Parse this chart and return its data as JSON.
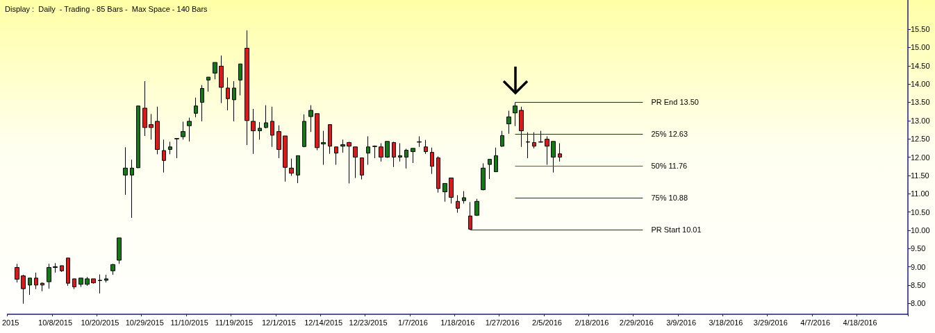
{
  "chart_data": {
    "type": "candlestick",
    "title": "Display :  Daily  - Trading - 85 Bars -  Max Space - 140 Bars",
    "categories": [
      "2015",
      null,
      null,
      null,
      null,
      null,
      null,
      "10/8/2015",
      null,
      null,
      null,
      null,
      null,
      null,
      "10/20/2015",
      null,
      null,
      null,
      null,
      null,
      null,
      "10/29/2015",
      null,
      null,
      null,
      null,
      null,
      null,
      "11/10/2015",
      null,
      null,
      null,
      null,
      null,
      null,
      "11/19/2015",
      null,
      null,
      null,
      null,
      null,
      null,
      "12/1/2015",
      null,
      null,
      null,
      null,
      null,
      null,
      "12/14/2015",
      null,
      null,
      null,
      null,
      null,
      null,
      "12/23/2015",
      null,
      null,
      null,
      null,
      null,
      null,
      "1/7/2016",
      null,
      null,
      null,
      null,
      null,
      null,
      "1/18/2016",
      null,
      null,
      null,
      null,
      null,
      null,
      "1/27/2016",
      null,
      null,
      null,
      null,
      null,
      null,
      "2/5/2016",
      null,
      null,
      null,
      null,
      null,
      null,
      "2/18/2016",
      null,
      null,
      null,
      null,
      null,
      null,
      "2/29/2016",
      null,
      null,
      null,
      null,
      null,
      null,
      "3/9/2016",
      null,
      null,
      null,
      null,
      null,
      null,
      "3/18/2016",
      null,
      null,
      null,
      null,
      null,
      null,
      "3/29/2016",
      null,
      null,
      null,
      null,
      null,
      null,
      "4/7/2016",
      null,
      null,
      null,
      null,
      null,
      null,
      "4/18/2016",
      null,
      null,
      null,
      null,
      null,
      null,
      null
    ],
    "ohlc": [
      null,
      [
        8.98,
        9.08,
        8.57,
        8.66
      ],
      [
        8.75,
        8.78,
        7.99,
        8.4
      ],
      [
        8.5,
        8.69,
        8.23,
        8.69
      ],
      [
        8.69,
        8.84,
        8.39,
        8.5
      ],
      [
        8.55,
        8.57,
        8.33,
        8.5
      ],
      [
        8.59,
        9.08,
        8.4,
        8.98
      ],
      [
        8.98,
        9.1,
        8.84,
        9.0
      ],
      [
        9.03,
        9.03,
        8.86,
        8.89
      ],
      [
        9.24,
        9.24,
        8.48,
        8.55
      ],
      [
        8.67,
        8.67,
        8.39,
        8.45
      ],
      [
        8.52,
        8.69,
        8.45,
        8.69
      ],
      [
        8.52,
        8.72,
        8.48,
        8.67
      ],
      [
        8.67,
        8.67,
        8.54,
        8.56
      ],
      [
        8.63,
        8.79,
        8.27,
        8.62
      ],
      [
        8.63,
        8.78,
        8.57,
        8.67
      ],
      [
        8.89,
        9.08,
        8.78,
        9.06
      ],
      [
        9.18,
        9.79,
        9.08,
        9.79
      ],
      [
        11.51,
        12.27,
        10.97,
        11.7
      ],
      [
        11.51,
        11.93,
        10.34,
        11.7
      ],
      [
        11.71,
        13.4,
        11.7,
        13.4
      ],
      [
        13.34,
        14.08,
        12.58,
        12.81
      ],
      [
        12.89,
        13.18,
        12.48,
        12.81
      ],
      [
        12.98,
        13.38,
        12.08,
        12.21
      ],
      [
        12.18,
        12.48,
        11.58,
        11.91
      ],
      [
        12.21,
        12.42,
        12.08,
        12.28
      ],
      [
        12.5,
        12.51,
        11.97,
        12.51
      ],
      [
        12.56,
        12.97,
        12.48,
        12.7
      ],
      [
        12.86,
        13.08,
        12.43,
        12.98
      ],
      [
        13.2,
        13.63,
        13.09,
        13.4
      ],
      [
        13.5,
        13.97,
        12.98,
        13.88
      ],
      [
        14.11,
        14.19,
        13.79,
        14.19
      ],
      [
        14.3,
        14.59,
        14.13,
        14.59
      ],
      [
        14.49,
        14.78,
        13.48,
        13.91
      ],
      [
        13.89,
        14.18,
        13.28,
        13.6
      ],
      [
        13.57,
        14.08,
        12.98,
        13.89
      ],
      [
        14.11,
        14.55,
        13.69,
        14.55
      ],
      [
        14.98,
        15.47,
        12.33,
        13.0
      ],
      [
        12.98,
        13.32,
        12.09,
        12.72
      ],
      [
        12.72,
        12.96,
        12.48,
        12.79
      ],
      [
        12.81,
        13.42,
        12.79,
        12.94
      ],
      [
        12.98,
        13.38,
        12.28,
        12.6
      ],
      [
        12.7,
        12.87,
        11.97,
        12.21
      ],
      [
        12.58,
        12.58,
        11.33,
        11.72
      ],
      [
        11.7,
        11.96,
        11.49,
        11.56
      ],
      [
        11.51,
        12.04,
        11.29,
        12.04
      ],
      [
        12.29,
        13.17,
        12.27,
        12.98
      ],
      [
        13.11,
        13.42,
        12.69,
        13.28
      ],
      [
        13.19,
        13.19,
        12.19,
        12.26
      ],
      [
        12.36,
        12.72,
        11.79,
        12.4
      ],
      [
        12.89,
        12.89,
        12.09,
        12.3
      ],
      [
        12.28,
        12.28,
        11.79,
        12.11
      ],
      [
        12.3,
        12.48,
        12.12,
        12.34
      ],
      [
        12.4,
        12.42,
        11.28,
        12.3
      ],
      [
        12.28,
        12.28,
        11.43,
        12.0
      ],
      [
        11.98,
        11.98,
        11.39,
        11.51
      ],
      [
        12.11,
        12.57,
        11.79,
        12.28
      ],
      [
        12.29,
        12.32,
        11.97,
        12.3
      ],
      [
        12.28,
        12.38,
        11.88,
        12.0
      ],
      [
        12.0,
        12.43,
        11.98,
        12.43
      ],
      [
        12.4,
        12.42,
        11.73,
        12.0
      ],
      [
        12.0,
        12.38,
        11.88,
        12.04
      ],
      [
        12.0,
        12.23,
        11.69,
        12.19
      ],
      [
        12.15,
        12.24,
        11.84,
        12.24
      ],
      [
        12.41,
        12.57,
        12.28,
        12.42
      ],
      [
        12.28,
        12.47,
        12.09,
        12.15
      ],
      [
        12.13,
        12.26,
        11.54,
        11.75
      ],
      [
        11.98,
        12.02,
        11.03,
        11.14
      ],
      [
        11.05,
        11.28,
        10.78,
        11.28
      ],
      [
        11.43,
        11.43,
        10.73,
        10.9
      ],
      [
        10.79,
        10.96,
        10.48,
        10.6
      ],
      [
        10.81,
        11.07,
        10.73,
        10.89
      ],
      [
        10.39,
        10.77,
        10.01,
        10.03
      ],
      [
        10.41,
        10.86,
        10.39,
        10.79
      ],
      [
        11.11,
        11.83,
        11.09,
        11.7
      ],
      [
        11.8,
        11.94,
        11.4,
        11.94
      ],
      [
        11.6,
        12.26,
        11.6,
        12.04
      ],
      [
        12.3,
        12.72,
        12.28,
        12.59
      ],
      [
        12.91,
        13.27,
        12.64,
        13.1
      ],
      [
        13.21,
        13.5,
        12.85,
        13.4
      ],
      [
        13.28,
        13.38,
        12.28,
        12.72
      ],
      [
        12.42,
        12.68,
        11.97,
        12.41
      ],
      [
        12.4,
        12.68,
        12.24,
        12.3
      ],
      [
        12.42,
        12.72,
        12.4,
        12.41
      ],
      [
        12.49,
        12.57,
        11.79,
        12.3
      ],
      [
        12.0,
        12.43,
        11.58,
        12.43
      ],
      [
        12.09,
        12.38,
        11.88,
        12.0
      ],
      null,
      null,
      null,
      null,
      null,
      null,
      null,
      null,
      null,
      null,
      null,
      null,
      null,
      null,
      null,
      null,
      null,
      null,
      null,
      null,
      null,
      null,
      null,
      null,
      null,
      null,
      null,
      null,
      null,
      null,
      null,
      null,
      null,
      null,
      null,
      null,
      null,
      null,
      null,
      null,
      null,
      null,
      null,
      null,
      null,
      null,
      null,
      null,
      null,
      null,
      null,
      null,
      null,
      null
    ],
    "ylim": [
      7.7,
      16.3
    ],
    "yticks": [
      {
        "value": 8,
        "label": "8.00"
      },
      {
        "value": 8.5,
        "label": "8.50"
      },
      {
        "value": 9,
        "label": "9.00"
      },
      {
        "value": 9.5,
        "label": "9.50"
      },
      {
        "value": 10,
        "label": "10.00"
      },
      {
        "value": 10.5,
        "label": "10.50"
      },
      {
        "value": 11,
        "label": "11.00"
      },
      {
        "value": 11.5,
        "label": "11.50"
      },
      {
        "value": 12,
        "label": "12.00"
      },
      {
        "value": 12.5,
        "label": "12.50"
      },
      {
        "value": 13,
        "label": "13.00"
      },
      {
        "value": 13.5,
        "label": "13.50"
      },
      {
        "value": 14,
        "label": "14.00"
      },
      {
        "value": 14.5,
        "label": "14.50"
      },
      {
        "value": 15,
        "label": "15.00"
      },
      {
        "value": 15.5,
        "label": "15.50"
      }
    ],
    "ref_lines": [
      {
        "axis": "y",
        "value": 13.5,
        "label": "PR End 13.50",
        "color": "#1c1c9c"
      },
      {
        "axis": "y",
        "value": 12.63,
        "label": "25% 12.63",
        "color": "#1c1c9c"
      },
      {
        "axis": "y",
        "value": 11.76,
        "label": "50% 11.76",
        "color": "#d42020"
      },
      {
        "axis": "y",
        "value": 10.88,
        "label": "75% 10.88",
        "color": "#1c1c9c"
      },
      {
        "axis": "y",
        "value": 10.01,
        "label": "PR Start 10.01",
        "color": "#1c1c9c"
      }
    ],
    "grid": false
  }
}
